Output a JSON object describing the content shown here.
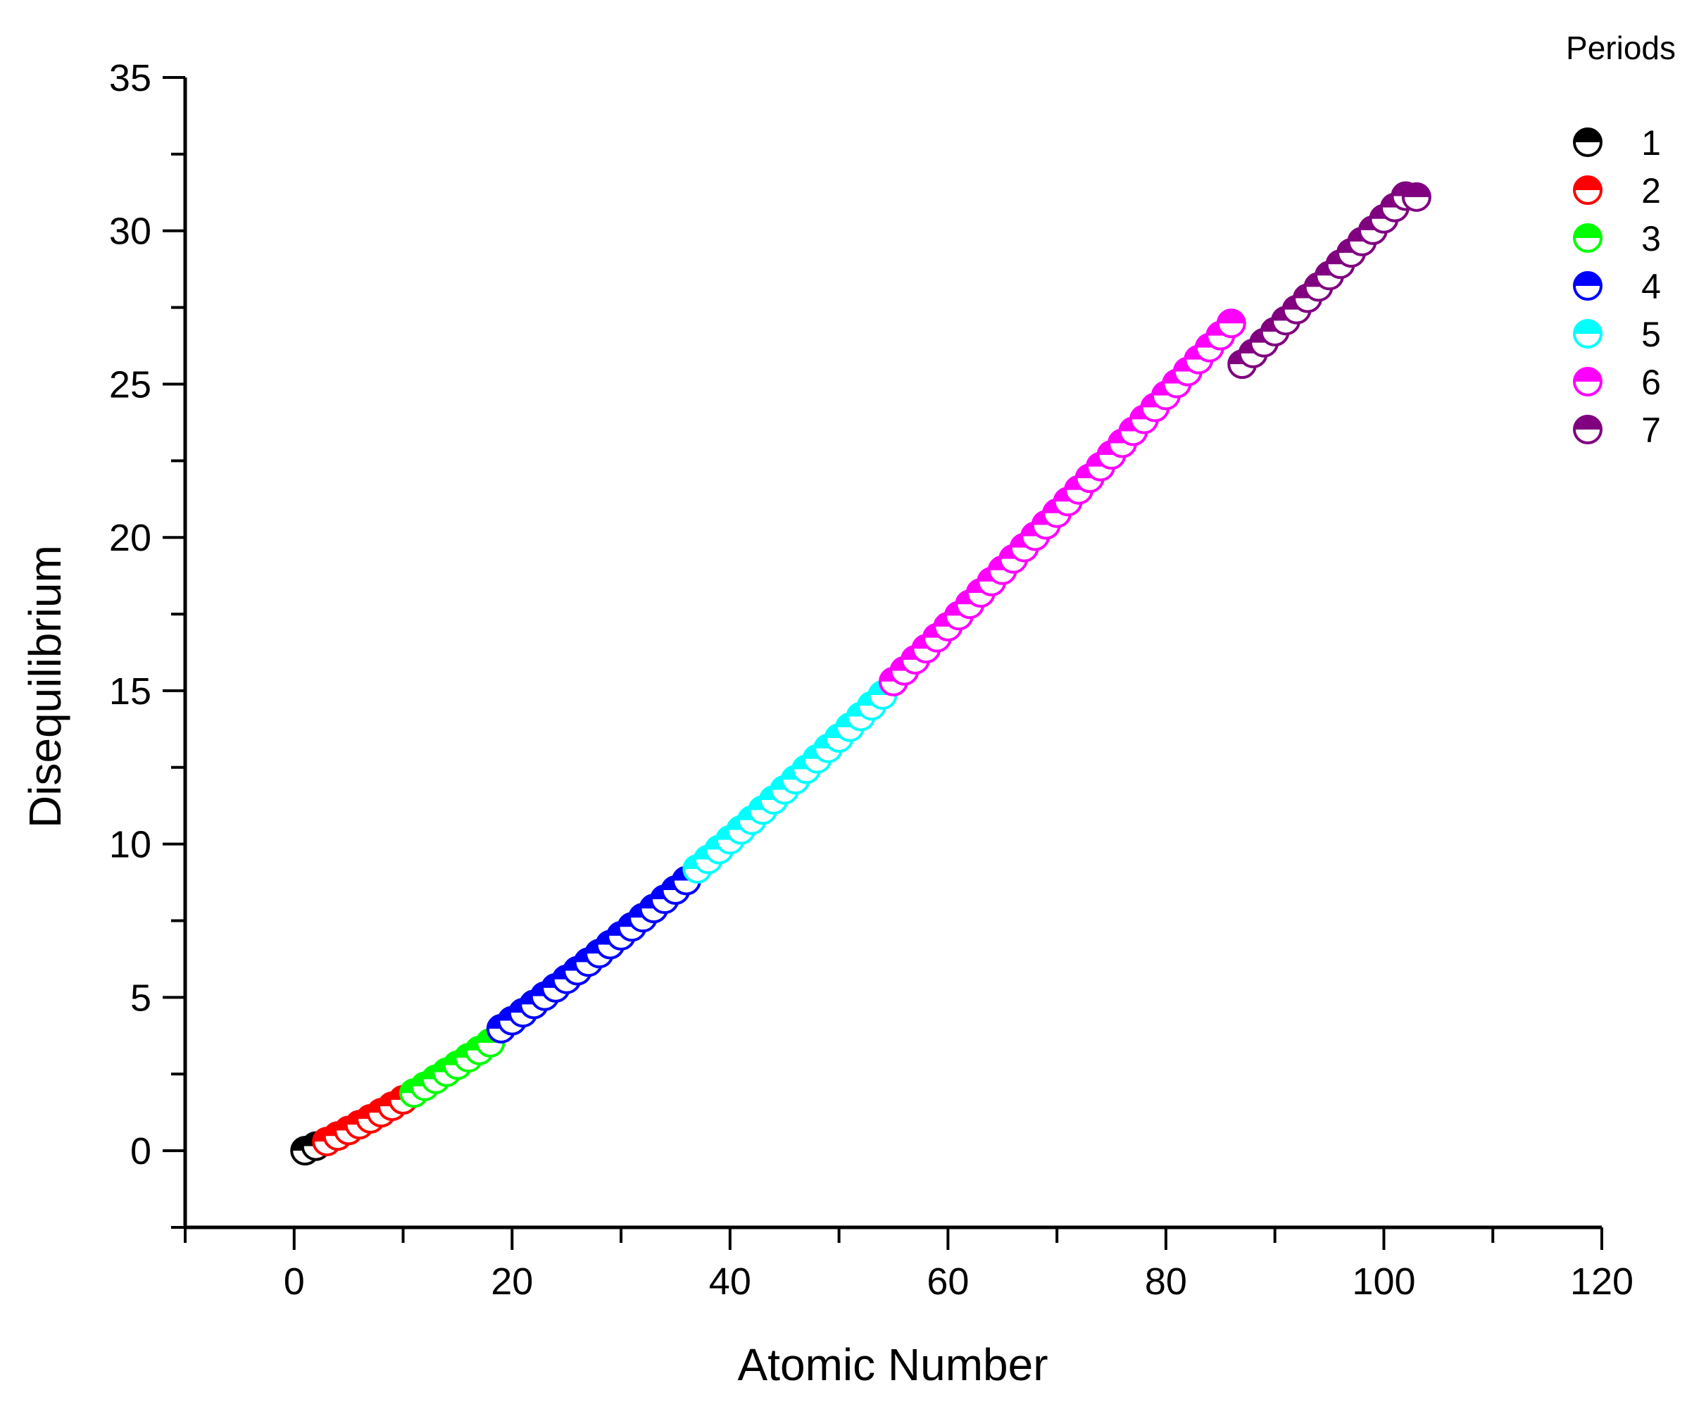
{
  "chart_data": {
    "type": "scatter",
    "title": "",
    "xlabel": "Atomic Number",
    "ylabel": "Disequilibrium",
    "xlim": [
      -10,
      120
    ],
    "ylim": [
      -2.5,
      35
    ],
    "xticks": [
      0,
      20,
      40,
      60,
      80,
      100,
      120
    ],
    "yticks": [
      0,
      5,
      10,
      15,
      20,
      25,
      30,
      35
    ],
    "grid": false,
    "marker": "half-filled circle (top half filled)",
    "legend": {
      "title": "Periods",
      "position": "top-right"
    },
    "series": [
      {
        "name": "1",
        "color": "#000000",
        "x": [
          1,
          2
        ],
        "y": [
          0.0,
          0.15
        ]
      },
      {
        "name": "2",
        "color": "#ff0000",
        "x": [
          3,
          4,
          5,
          6,
          7,
          8,
          9,
          10
        ],
        "y": [
          0.3,
          0.48,
          0.66,
          0.85,
          1.04,
          1.24,
          1.45,
          1.66
        ]
      },
      {
        "name": "3",
        "color": "#00ff00",
        "x": [
          11,
          12,
          13,
          14,
          15,
          16,
          17,
          18
        ],
        "y": [
          1.88,
          2.1,
          2.33,
          2.56,
          2.79,
          3.03,
          3.27,
          3.52
        ]
      },
      {
        "name": "4",
        "color": "#0000ff",
        "x": [
          19,
          20,
          21,
          22,
          23,
          24,
          25,
          26,
          27,
          28,
          29,
          30,
          31,
          32,
          33,
          34,
          35,
          36
        ],
        "y": [
          3.98,
          4.24,
          4.5,
          4.77,
          5.04,
          5.31,
          5.59,
          5.87,
          6.15,
          6.43,
          6.72,
          7.01,
          7.3,
          7.6,
          7.9,
          8.2,
          8.5,
          8.81
        ]
      },
      {
        "name": "5",
        "color": "#00ffff",
        "x": [
          37,
          38,
          39,
          40,
          41,
          42,
          43,
          44,
          45,
          46,
          47,
          48,
          49,
          50,
          51,
          52,
          53,
          54
        ],
        "y": [
          9.19,
          9.5,
          9.82,
          10.14,
          10.46,
          10.78,
          11.11,
          11.44,
          11.77,
          12.1,
          12.44,
          12.78,
          13.12,
          13.46,
          13.81,
          14.16,
          14.51,
          14.86
        ]
      },
      {
        "name": "6",
        "color": "#ff00ff",
        "x": [
          55,
          56,
          57,
          58,
          59,
          60,
          61,
          62,
          63,
          64,
          65,
          66,
          67,
          68,
          69,
          70,
          71,
          72,
          73,
          74,
          75,
          76,
          77,
          78,
          79,
          80,
          81,
          82,
          83,
          84,
          85,
          86
        ],
        "y": [
          15.3,
          15.65,
          16.01,
          16.37,
          16.73,
          17.09,
          17.45,
          17.82,
          18.19,
          18.56,
          18.93,
          19.3,
          19.67,
          20.04,
          20.41,
          20.79,
          21.17,
          21.55,
          21.93,
          22.31,
          22.69,
          23.07,
          23.46,
          23.85,
          24.24,
          24.63,
          25.02,
          25.41,
          25.8,
          26.19,
          26.58,
          26.98
        ]
      },
      {
        "name": "7",
        "color": "#800080",
        "x": [
          87,
          88,
          89,
          90,
          91,
          92,
          93,
          94,
          95,
          96,
          97,
          98,
          99,
          100,
          101,
          102,
          103
        ],
        "y": [
          25.65,
          26.0,
          26.35,
          26.71,
          27.07,
          27.43,
          27.8,
          28.17,
          28.54,
          28.91,
          29.28,
          29.65,
          30.02,
          30.39,
          30.76,
          31.13,
          31.1
        ]
      }
    ]
  }
}
